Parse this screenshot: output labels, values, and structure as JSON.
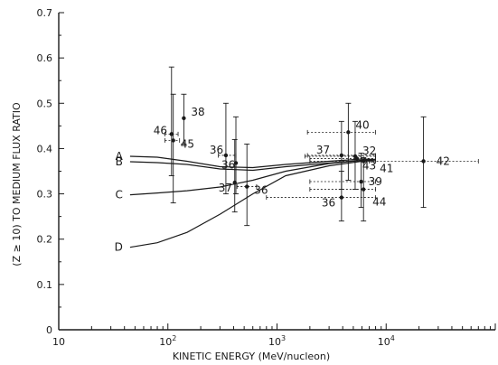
{
  "chart_data": {
    "type": "scatter",
    "title": "",
    "xlabel": "KINETIC ENERGY   (MeV/nucleon)",
    "ylabel": "(Z ≥ 10) TO MEDIUM FLUX RATIO",
    "x_scale": "log",
    "xlim": [
      10,
      100000
    ],
    "ylim": [
      0,
      0.7
    ],
    "x_ticks": [
      {
        "value": 10,
        "base": "10",
        "exp": ""
      },
      {
        "value": 100,
        "base": "10",
        "exp": "2"
      },
      {
        "value": 1000,
        "base": "10",
        "exp": "3"
      },
      {
        "value": 10000,
        "base": "10",
        "exp": "4"
      }
    ],
    "y_ticks": [
      "0",
      "0.1",
      "0.2",
      "0.3",
      "0.4",
      "0.5",
      "0.6",
      "0.7"
    ],
    "grid": false,
    "curves": [
      {
        "name": "A",
        "points": [
          [
            45,
            0.383
          ],
          [
            80,
            0.381
          ],
          [
            150,
            0.372
          ],
          [
            300,
            0.36
          ],
          [
            600,
            0.358
          ],
          [
            1200,
            0.365
          ],
          [
            3000,
            0.372
          ],
          [
            6000,
            0.377
          ],
          [
            8000,
            0.376
          ]
        ]
      },
      {
        "name": "B",
        "points": [
          [
            45,
            0.371
          ],
          [
            80,
            0.369
          ],
          [
            150,
            0.365
          ],
          [
            300,
            0.355
          ],
          [
            600,
            0.352
          ],
          [
            1200,
            0.36
          ],
          [
            3000,
            0.368
          ],
          [
            6000,
            0.374
          ],
          [
            8000,
            0.375
          ]
        ]
      },
      {
        "name": "C",
        "points": [
          [
            45,
            0.298
          ],
          [
            80,
            0.302
          ],
          [
            150,
            0.307
          ],
          [
            300,
            0.315
          ],
          [
            600,
            0.33
          ],
          [
            1200,
            0.35
          ],
          [
            3000,
            0.367
          ],
          [
            6000,
            0.374
          ],
          [
            8000,
            0.376
          ]
        ]
      },
      {
        "name": "D",
        "points": [
          [
            45,
            0.182
          ],
          [
            80,
            0.192
          ],
          [
            150,
            0.215
          ],
          [
            300,
            0.255
          ],
          [
            600,
            0.3
          ],
          [
            1200,
            0.34
          ],
          [
            3000,
            0.362
          ],
          [
            6000,
            0.372
          ],
          [
            8000,
            0.375
          ]
        ]
      }
    ],
    "points": [
      {
        "label": "46",
        "x": 108,
        "y": 0.432,
        "yerr": [
          0.34,
          0.58
        ],
        "xerr": [
          94,
          124
        ]
      },
      {
        "label": "45",
        "x": 112,
        "y": 0.418,
        "yerr": [
          0.28,
          0.52
        ],
        "xerr": [
          94,
          128
        ]
      },
      {
        "label": "38",
        "x": 140,
        "y": 0.467,
        "yerr": [
          0.41,
          0.52
        ]
      },
      {
        "label": "36",
        "x": 340,
        "y": 0.385,
        "yerr": [
          0.3,
          0.5
        ],
        "xerr": [
          290,
          420
        ]
      },
      {
        "label": "36",
        "x": 420,
        "y": 0.368,
        "yerr": [
          0.3,
          0.47
        ]
      },
      {
        "label": "37",
        "x": 410,
        "y": 0.325,
        "yerr": [
          0.26,
          0.42
        ]
      },
      {
        "label": "36",
        "x": 530,
        "y": 0.316,
        "yerr": [
          0.23,
          0.41
        ],
        "xerr": [
          430,
          650
        ]
      },
      {
        "label": "37",
        "x": 3900,
        "y": 0.385,
        "yerr": [
          0.31,
          0.46
        ],
        "xerr": [
          1900,
          8000
        ]
      },
      {
        "label": "40",
        "x": 4500,
        "y": 0.436,
        "yerr": [
          0.33,
          0.5
        ],
        "xerr": [
          1900,
          8000
        ]
      },
      {
        "label": "32",
        "x": 5200,
        "y": 0.383,
        "yerr": [
          0.31,
          0.46
        ],
        "xerr": [
          1800,
          8000
        ]
      },
      {
        "label": "43",
        "x": 5400,
        "y": 0.378,
        "xerr": [
          2000,
          8000
        ]
      },
      {
        "label": "41",
        "x": 6200,
        "y": 0.372,
        "xerr": [
          2000,
          8000
        ]
      },
      {
        "label": "39",
        "x": 5900,
        "y": 0.327,
        "yerr": [
          0.27,
          0.39
        ],
        "xerr": [
          2000,
          8000
        ]
      },
      {
        "label": "36",
        "x": 3900,
        "y": 0.292,
        "yerr": [
          0.24,
          0.35
        ],
        "xerr": [
          800,
          8000
        ]
      },
      {
        "label": "44",
        "x": 6200,
        "y": 0.31,
        "yerr": [
          0.24,
          0.38
        ],
        "xerr": [
          2000,
          8000
        ]
      },
      {
        "label": "42",
        "x": 22000,
        "y": 0.372,
        "yerr": [
          0.27,
          0.47
        ],
        "xerr": [
          7000,
          70000
        ]
      }
    ]
  }
}
